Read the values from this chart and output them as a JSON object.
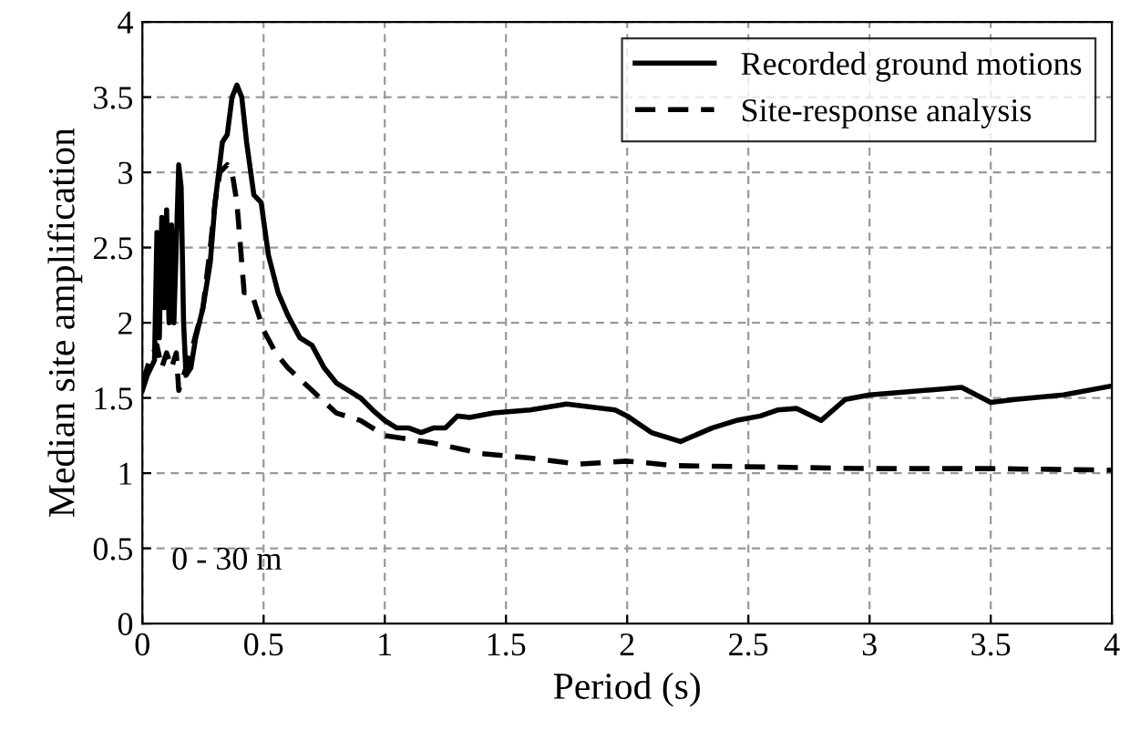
{
  "chart_data": {
    "type": "line",
    "xlabel": "Period (s)",
    "ylabel": "Median site amplification",
    "xlim": [
      0,
      4
    ],
    "ylim": [
      0,
      4
    ],
    "xticks": [
      0,
      0.5,
      1,
      1.5,
      2,
      2.5,
      3,
      3.5,
      4
    ],
    "yticks": [
      0,
      0.5,
      1,
      1.5,
      2,
      2.5,
      3,
      3.5,
      4
    ],
    "grid": true,
    "legend": "top right",
    "annotations": [
      {
        "text": "0 - 30 m"
      }
    ],
    "series": [
      {
        "name": "Recorded ground motions",
        "color": "#000000",
        "line_style": "solid",
        "x": [
          0,
          0.02,
          0.05,
          0.06,
          0.07,
          0.08,
          0.09,
          0.1,
          0.11,
          0.12,
          0.13,
          0.15,
          0.16,
          0.17,
          0.18,
          0.2,
          0.22,
          0.25,
          0.28,
          0.3,
          0.33,
          0.35,
          0.37,
          0.39,
          0.41,
          0.43,
          0.46,
          0.49,
          0.52,
          0.56,
          0.6,
          0.65,
          0.7,
          0.75,
          0.8,
          0.85,
          0.9,
          0.95,
          1.0,
          1.05,
          1.1,
          1.15,
          1.2,
          1.25,
          1.3,
          1.35,
          1.45,
          1.6,
          1.75,
          1.85,
          1.95,
          2.0,
          2.1,
          2.22,
          2.35,
          2.45,
          2.55,
          2.62,
          2.7,
          2.8,
          2.9,
          3.0,
          3.15,
          3.3,
          3.38,
          3.5,
          3.6,
          3.8,
          4.0
        ],
        "values": [
          1.55,
          1.65,
          1.75,
          2.6,
          1.9,
          2.7,
          2.1,
          2.75,
          2.0,
          2.65,
          2.0,
          3.05,
          2.9,
          2.0,
          1.65,
          1.7,
          1.9,
          2.1,
          2.4,
          2.8,
          3.2,
          3.25,
          3.5,
          3.58,
          3.5,
          3.2,
          2.85,
          2.8,
          2.45,
          2.2,
          2.05,
          1.9,
          1.85,
          1.7,
          1.6,
          1.55,
          1.5,
          1.42,
          1.35,
          1.3,
          1.3,
          1.27,
          1.3,
          1.3,
          1.38,
          1.37,
          1.4,
          1.42,
          1.46,
          1.44,
          1.42,
          1.38,
          1.27,
          1.21,
          1.3,
          1.35,
          1.38,
          1.42,
          1.43,
          1.35,
          1.49,
          1.52,
          1.54,
          1.56,
          1.57,
          1.47,
          1.49,
          1.52,
          1.58
        ]
      },
      {
        "name": "Site-response analysis",
        "color": "#000000",
        "line_style": "dashed",
        "x": [
          0,
          0.03,
          0.06,
          0.08,
          0.1,
          0.12,
          0.14,
          0.15,
          0.17,
          0.2,
          0.25,
          0.28,
          0.3,
          0.32,
          0.35,
          0.37,
          0.39,
          0.4,
          0.42,
          0.45,
          0.47,
          0.5,
          0.55,
          0.6,
          0.7,
          0.8,
          0.9,
          1.0,
          1.2,
          1.4,
          1.6,
          1.8,
          2.0,
          2.2,
          2.6,
          3.0,
          3.5,
          4.0
        ],
        "values": [
          1.6,
          1.75,
          1.85,
          1.7,
          1.8,
          1.7,
          1.8,
          1.55,
          1.65,
          1.8,
          2.1,
          2.5,
          2.8,
          3.0,
          3.05,
          3.0,
          2.8,
          2.6,
          2.2,
          2.2,
          2.1,
          1.95,
          1.8,
          1.7,
          1.55,
          1.4,
          1.35,
          1.25,
          1.2,
          1.13,
          1.1,
          1.06,
          1.08,
          1.05,
          1.04,
          1.03,
          1.03,
          1.02
        ]
      }
    ]
  }
}
